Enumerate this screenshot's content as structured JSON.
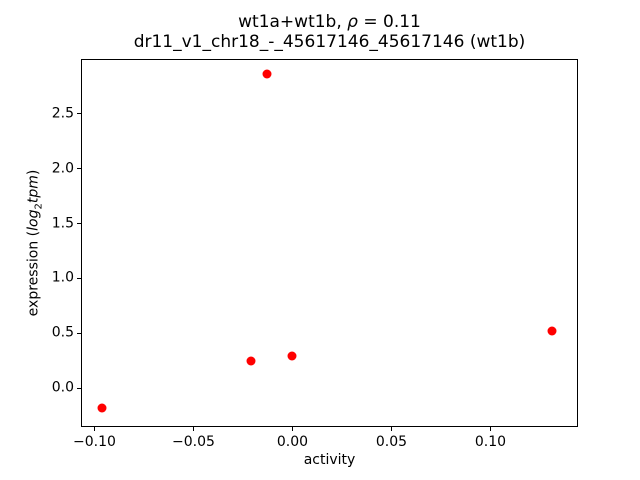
{
  "chart_data": {
    "type": "scatter",
    "title": "wt1a+wt1b, ρ = 0.11\ndr11_v1_chr18_-_45617146_45617146 (wt1b)",
    "title_lines": [
      {
        "parts": [
          {
            "text": "wt1a+wt1b, "
          },
          {
            "text": "ρ",
            "italic": true
          },
          {
            "text": " = 0.11"
          }
        ]
      },
      {
        "parts": [
          {
            "text": "dr11_v1_chr18_-_45617146_45617146 (wt1b)"
          }
        ]
      }
    ],
    "xlabel": "activity",
    "ylabel_text": "expression (log₂tpm)",
    "ylabel_parts": [
      {
        "text": "expression ("
      },
      {
        "text": "log",
        "italic": true
      },
      {
        "text": "2",
        "sub": true
      },
      {
        "text": "tpm",
        "italic": true
      },
      {
        "text": ")"
      }
    ],
    "marker_color": "#ff0000",
    "axes": {
      "xlim": [
        -0.1063,
        0.1437
      ],
      "ylim": [
        -0.344,
        2.989
      ],
      "grid": false,
      "xticks": {
        "values": [
          -0.1,
          -0.05,
          0.0,
          0.05,
          0.1
        ],
        "labels": [
          "−0.10",
          "−0.05",
          "0.00",
          "0.05",
          "0.10"
        ]
      },
      "yticks": {
        "values": [
          0.0,
          0.5,
          1.0,
          1.5,
          2.0,
          2.5
        ],
        "labels": [
          "0.0",
          "0.5",
          "1.0",
          "1.5",
          "2.0",
          "2.5"
        ]
      }
    },
    "points": [
      {
        "x": -0.096,
        "y": -0.18
      },
      {
        "x": -0.021,
        "y": 0.25
      },
      {
        "x": -0.013,
        "y": 2.86
      },
      {
        "x": 0.0,
        "y": 0.29
      },
      {
        "x": 0.131,
        "y": 0.52
      }
    ]
  }
}
